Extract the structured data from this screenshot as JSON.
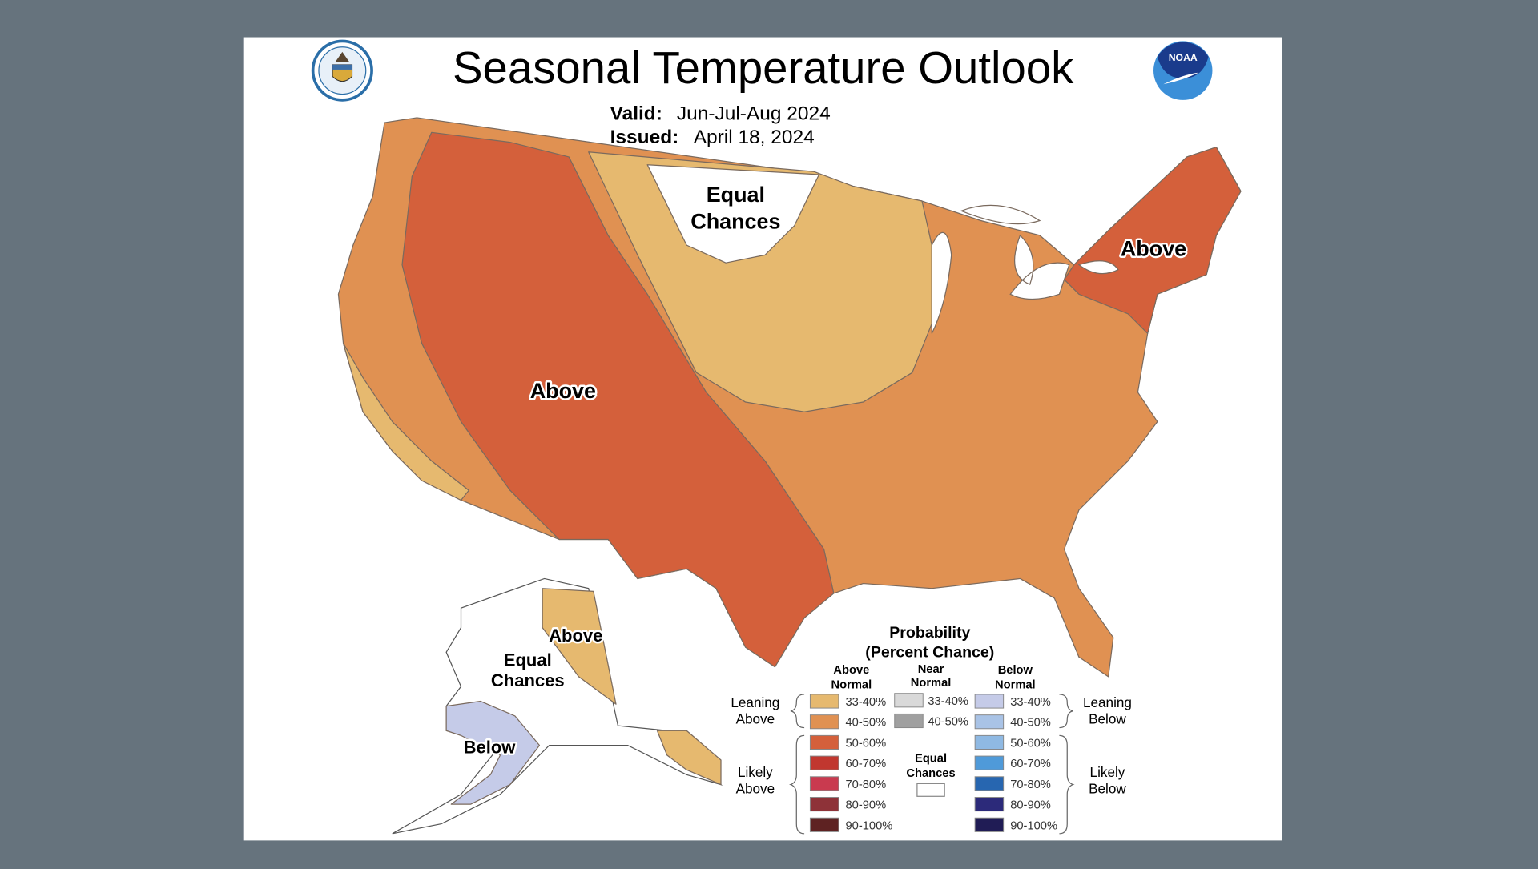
{
  "header": {
    "title": "Seasonal Temperature Outlook",
    "valid_label": "Valid:",
    "valid_value": "Jun-Jul-Aug 2024",
    "issued_label": "Issued:",
    "issued_value": "April 18, 2024",
    "left_logo": "Department of Commerce seal",
    "right_logo": "NOAA",
    "right_logo_text": "NOAA"
  },
  "map_labels": {
    "conus_equal_1": "Equal",
    "conus_equal_2": "Chances",
    "west_above": "Above",
    "northeast_above": "Above",
    "alaska_above": "Above",
    "alaska_equal_1": "Equal",
    "alaska_equal_2": "Chances",
    "alaska_below": "Below"
  },
  "legend": {
    "title_1": "Probability",
    "title_2": "(Percent Chance)",
    "above_header_1": "Above",
    "above_header_2": "Normal",
    "near_header_1": "Near",
    "near_header_2": "Normal",
    "below_header_1": "Below",
    "below_header_2": "Normal",
    "leaning_above_1": "Leaning",
    "leaning_above_2": "Above",
    "likely_above_1": "Likely",
    "likely_above_2": "Above",
    "leaning_below_1": "Leaning",
    "leaning_below_2": "Below",
    "likely_below_1": "Likely",
    "likely_below_2": "Below",
    "equal_1": "Equal",
    "equal_2": "Chances",
    "above": [
      {
        "label": "33-40%",
        "color": "#e6b96f"
      },
      {
        "label": "40-50%",
        "color": "#e09152"
      },
      {
        "label": "50-60%",
        "color": "#d4603b"
      },
      {
        "label": "60-70%",
        "color": "#c1372f"
      },
      {
        "label": "70-80%",
        "color": "#c93a4f"
      },
      {
        "label": "80-90%",
        "color": "#8e3238"
      },
      {
        "label": "90-100%",
        "color": "#5e2222"
      }
    ],
    "near": [
      {
        "label": "33-40%",
        "color": "#d9d9d9"
      },
      {
        "label": "40-50%",
        "color": "#a0a0a0"
      }
    ],
    "below": [
      {
        "label": "33-40%",
        "color": "#c5cbe8"
      },
      {
        "label": "40-50%",
        "color": "#a9c3e6"
      },
      {
        "label": "50-60%",
        "color": "#8fb9e3"
      },
      {
        "label": "60-70%",
        "color": "#4f9ad9"
      },
      {
        "label": "70-80%",
        "color": "#2766b0"
      },
      {
        "label": "80-90%",
        "color": "#2c2a7a"
      },
      {
        "label": "90-100%",
        "color": "#201c55"
      }
    ],
    "equal_color": "#ffffff"
  }
}
